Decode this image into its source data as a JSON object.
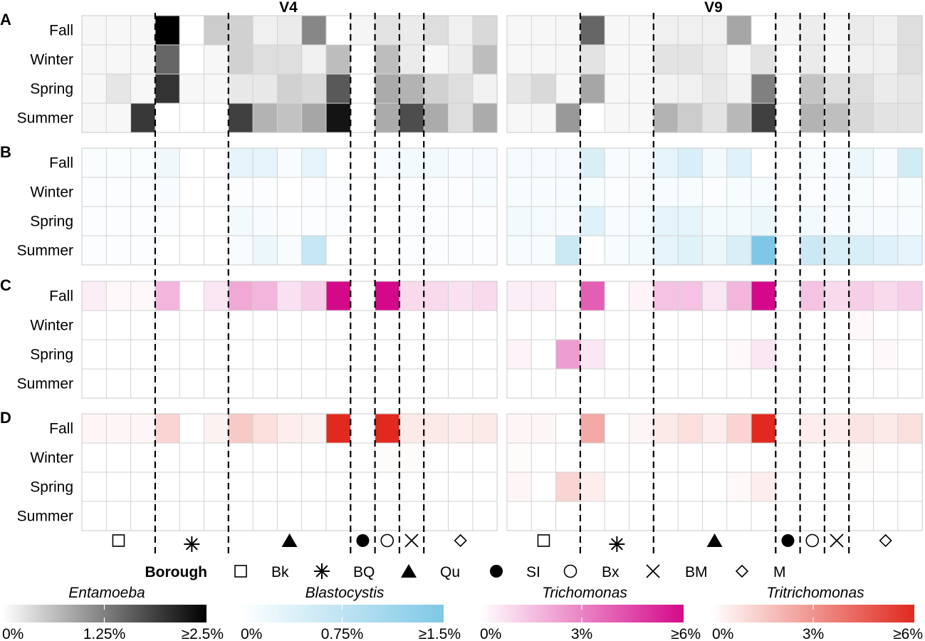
{
  "chart_data": {
    "type": "heatmap",
    "columns": [
      {
        "title": "V4"
      },
      {
        "title": "V9"
      }
    ],
    "panels": [
      {
        "letter": "A",
        "organism": "Entamoeba",
        "color": "#000000"
      },
      {
        "letter": "B",
        "organism": "Blastocystis",
        "color": "#7ec8e6"
      },
      {
        "letter": "C",
        "organism": "Trichomonas",
        "color": "#d4098a"
      },
      {
        "letter": "D",
        "organism": "Tritrichomonas",
        "color": "#e0291f"
      }
    ],
    "seasons": [
      "Fall",
      "Winter",
      "Spring",
      "Summer"
    ],
    "boroughs": [
      {
        "code": "Bk",
        "marker": "square"
      },
      {
        "code": "BQ",
        "marker": "asterisk"
      },
      {
        "code": "Qu",
        "marker": "triangle"
      },
      {
        "code": "SI",
        "marker": "circle-filled"
      },
      {
        "code": "Bx",
        "marker": "circle-open"
      },
      {
        "code": "BM",
        "marker": "cross"
      },
      {
        "code": "M",
        "marker": "diamond"
      }
    ],
    "legend_title": "Borough",
    "scales": [
      {
        "organism": "Entamoeba",
        "ticks": [
          "0%",
          "1.25%",
          "≥2.5%"
        ]
      },
      {
        "organism": "Blastocystis",
        "ticks": [
          "0%",
          "0.75%",
          "≥1.5%"
        ]
      },
      {
        "organism": "Trichomonas",
        "ticks": [
          "0%",
          "3%",
          "≥6%"
        ]
      },
      {
        "organism": "Tritrichomonas",
        "ticks": [
          "0%",
          "3%",
          "≥6%"
        ]
      }
    ],
    "intensity": {
      "V4": {
        "A": [
          [
            0.03,
            0.03,
            0.03,
            1.0,
            0,
            0.2,
            0.18,
            0.06,
            0.08,
            0.47,
            0,
            0.04,
            0.11,
            0.08,
            0.13,
            0.06,
            0.15
          ],
          [
            0.03,
            0.03,
            0.03,
            0.6,
            0,
            0.03,
            0.18,
            0.13,
            0.13,
            0.06,
            0.26,
            0,
            0.26,
            0.08,
            0.03,
            0.07,
            0.26
          ],
          [
            0.03,
            0.1,
            0.03,
            0.8,
            0.03,
            0.03,
            0.09,
            0.09,
            0.18,
            0.15,
            0.65,
            0,
            0.33,
            0.3,
            0.18,
            0.13,
            0.05
          ],
          [
            0.03,
            0.03,
            0.78,
            0,
            0,
            0,
            0.75,
            0.3,
            0.24,
            0.35,
            0.92,
            0,
            0.33,
            0.7,
            0.33,
            0.13,
            0.33
          ]
        ],
        "B": [
          [
            0.04,
            0.04,
            0.04,
            0.12,
            0,
            0,
            0.2,
            0.2,
            0.05,
            0.2,
            0,
            0,
            0.05,
            0.1,
            0.1,
            0.05,
            0.08
          ],
          [
            0.03,
            0.03,
            0.03,
            0.05,
            0,
            0,
            0.03,
            0.03,
            0,
            0.03,
            0.03,
            0,
            0,
            0.03,
            0.03,
            0.03,
            0.06
          ],
          [
            0.03,
            0.03,
            0.03,
            0.03,
            0,
            0,
            0.1,
            0.05,
            0.03,
            0.03,
            0.03,
            0,
            0,
            0.03,
            0.03,
            0.03,
            0.03
          ],
          [
            0.03,
            0.03,
            0.03,
            0,
            0,
            0,
            0.05,
            0.15,
            0.05,
            0.45,
            0,
            0,
            0,
            0.03,
            0.03,
            0.03,
            0.03
          ]
        ],
        "C": [
          [
            0.07,
            0.03,
            0.03,
            0.3,
            0,
            0.1,
            0.35,
            0.3,
            0.12,
            0.2,
            1.0,
            0,
            1.0,
            0.15,
            0.15,
            0.12,
            0.15
          ],
          [
            0,
            0,
            0,
            0,
            0,
            0,
            0,
            0,
            0,
            0,
            0,
            0,
            0,
            0,
            0,
            0,
            0
          ],
          [
            0,
            0,
            0,
            0,
            0,
            0,
            0,
            0,
            0,
            0,
            0,
            0,
            0,
            0,
            0,
            0,
            0
          ],
          [
            0,
            0,
            0,
            0,
            0,
            0,
            0,
            0,
            0,
            0,
            0,
            0,
            0,
            0,
            0,
            0,
            0
          ]
        ],
        "D": [
          [
            0.04,
            0.04,
            0.04,
            0.2,
            0,
            0.06,
            0.25,
            0.15,
            0.08,
            0.06,
            1.0,
            0,
            1.0,
            0.1,
            0.1,
            0.08,
            0.1
          ],
          [
            0,
            0,
            0,
            0,
            0,
            0,
            0,
            0,
            0,
            0,
            0,
            0,
            0.02,
            0.02,
            0,
            0,
            0
          ],
          [
            0,
            0,
            0,
            0,
            0,
            0,
            0,
            0,
            0,
            0,
            0,
            0,
            0,
            0,
            0,
            0,
            0
          ],
          [
            0,
            0,
            0,
            0,
            0,
            0,
            0,
            0,
            0,
            0,
            0,
            0,
            0,
            0,
            0,
            0,
            0
          ]
        ]
      },
      "V9": {
        "A": [
          [
            0.03,
            0.03,
            0.03,
            0.6,
            0.03,
            0.03,
            0.06,
            0.06,
            0.06,
            0.35,
            0,
            0.03,
            0.07,
            0.03,
            0.08,
            0.06,
            0.13
          ],
          [
            0.03,
            0.03,
            0.03,
            0.11,
            0.03,
            0.03,
            0.11,
            0.11,
            0.08,
            0.03,
            0.11,
            0,
            0.08,
            0.03,
            0.06,
            0.06,
            0.13
          ],
          [
            0.1,
            0.15,
            0.03,
            0.35,
            0.03,
            0.03,
            0.05,
            0.06,
            0.09,
            0.05,
            0.5,
            0,
            0.23,
            0.13,
            0.13,
            0.08,
            0.1
          ],
          [
            0.03,
            0.03,
            0.4,
            0,
            0.03,
            0.03,
            0.3,
            0.2,
            0.11,
            0.28,
            0.75,
            0,
            0.3,
            0.25,
            0.15,
            0.11,
            0.11
          ]
        ],
        "B": [
          [
            0.08,
            0.08,
            0.08,
            0.3,
            0.05,
            0.05,
            0.2,
            0.3,
            0.1,
            0.25,
            0,
            0,
            0.06,
            0.06,
            0.15,
            0.06,
            0.35
          ],
          [
            0.06,
            0.06,
            0.06,
            0.06,
            0.03,
            0.05,
            0.06,
            0.06,
            0.03,
            0.06,
            0.06,
            0,
            0.03,
            0.06,
            0.06,
            0.03,
            0.06
          ],
          [
            0.1,
            0.08,
            0.06,
            0.25,
            0.06,
            0.08,
            0.2,
            0.2,
            0.1,
            0.1,
            0.15,
            0,
            0.1,
            0.06,
            0.08,
            0.06,
            0.06
          ],
          [
            0.06,
            0.06,
            0.4,
            0,
            0.06,
            0.1,
            0.2,
            0.25,
            0.15,
            0.3,
            1.0,
            0,
            0.4,
            0.3,
            0.3,
            0.25,
            0.2
          ]
        ],
        "C": [
          [
            0.07,
            0.07,
            0,
            0.65,
            0,
            0.05,
            0.25,
            0.25,
            0.1,
            0.3,
            1.0,
            0,
            0.25,
            0.15,
            0.2,
            0.15,
            0.2
          ],
          [
            0,
            0,
            0,
            0,
            0,
            0,
            0,
            0,
            0,
            0,
            0,
            0,
            0,
            0,
            0.03,
            0,
            0
          ],
          [
            0.05,
            0,
            0.4,
            0.1,
            0,
            0,
            0,
            0,
            0,
            0.03,
            0.1,
            0,
            0,
            0,
            0,
            0.03,
            0
          ],
          [
            0,
            0,
            0,
            0,
            0,
            0,
            0,
            0,
            0,
            0,
            0,
            0,
            0,
            0,
            0,
            0,
            0
          ]
        ],
        "D": [
          [
            0.04,
            0.04,
            0,
            0.4,
            0,
            0.04,
            0.1,
            0.15,
            0.08,
            0.2,
            1.0,
            0,
            0.08,
            0.08,
            0.12,
            0.1,
            0.15
          ],
          [
            0.02,
            0,
            0,
            0,
            0,
            0,
            0,
            0,
            0,
            0,
            0,
            0,
            0,
            0,
            0.02,
            0,
            0
          ],
          [
            0.04,
            0,
            0.2,
            0.08,
            0,
            0,
            0,
            0,
            0,
            0.03,
            0.08,
            0,
            0,
            0,
            0,
            0,
            0
          ],
          [
            0,
            0,
            0,
            0,
            0,
            0,
            0,
            0,
            0,
            0,
            0,
            0,
            0,
            0,
            0,
            0,
            0
          ]
        ]
      }
    }
  }
}
